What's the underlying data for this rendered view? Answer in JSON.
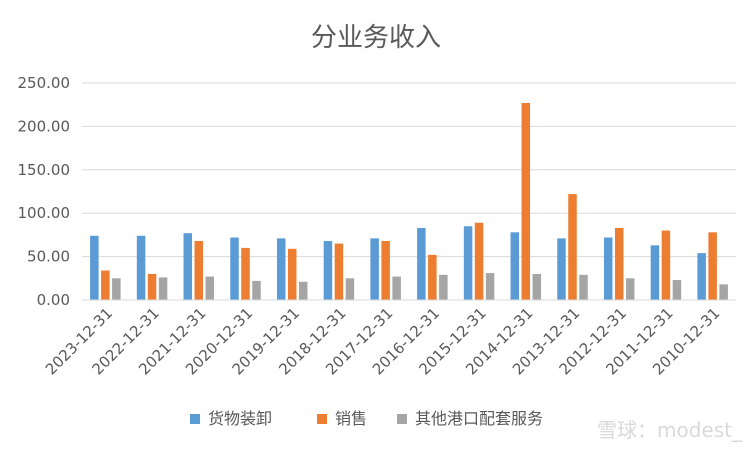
{
  "chart_data": {
    "type": "bar",
    "title": "分业务收入",
    "xlabel": "",
    "ylabel": "",
    "ylim": [
      0,
      250
    ],
    "yticks": [
      "0.00",
      "50.00",
      "100.00",
      "150.00",
      "200.00",
      "250.00"
    ],
    "grid": true,
    "legend_position": "bottom",
    "categories": [
      "2023-12-31",
      "2022-12-31",
      "2021-12-31",
      "2020-12-31",
      "2019-12-31",
      "2018-12-31",
      "2017-12-31",
      "2016-12-31",
      "2015-12-31",
      "2014-12-31",
      "2013-12-31",
      "2012-12-31",
      "2011-12-31",
      "2010-12-31"
    ],
    "series": [
      {
        "name": "货物装卸",
        "color": "#5b9bd5",
        "values": [
          74,
          74,
          77,
          72,
          71,
          68,
          71,
          83,
          85,
          78,
          71,
          72,
          63,
          54
        ]
      },
      {
        "name": "销售",
        "color": "#ed7d31",
        "values": [
          34,
          30,
          68,
          60,
          59,
          65,
          68,
          52,
          89,
          227,
          122,
          83,
          80,
          78
        ]
      },
      {
        "name": "其他港口配套服务",
        "color": "#a5a5a5",
        "values": [
          25,
          26,
          27,
          22,
          21,
          25,
          27,
          29,
          31,
          30,
          29,
          25,
          23,
          18
        ]
      }
    ]
  },
  "watermark": {
    "text": "雪球：modest_"
  }
}
